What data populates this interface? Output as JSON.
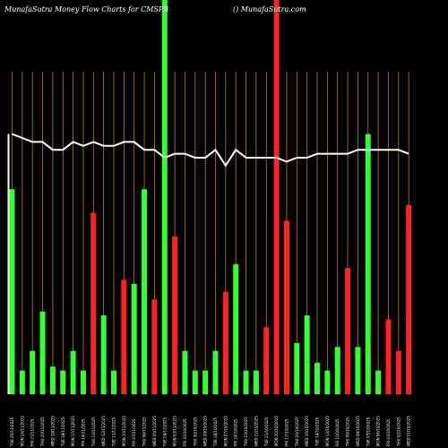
{
  "header": {
    "left": "MunafaSutra  Money Flow  Charts for CMSPB",
    "right": "() MunafaSutra.com"
  },
  "colors": {
    "background": "#000000",
    "up": "#33ff33",
    "down": "#ff2222",
    "grid": "#c87818",
    "line": "#ffffff"
  },
  "chart_data": {
    "type": "bar",
    "title": "MunafaSutra  Money Flow  Charts for CMSPB",
    "ylim": [
      0,
      100
    ],
    "categories": [
      "TUE 25/11/2025",
      "MON 24/11/2025",
      "FRI 21/11/2025",
      "THU 20/11/2025",
      "WED 19/11/2025",
      "TUE 18/11/2025",
      "MON 17/11/2025",
      "FRI 14/11/2025",
      "THU 13/11/2025",
      "WED 12/11/2025",
      "TUE 11/11/2025",
      "MON 10/11/2025",
      "FRI 07/11/2025",
      "THU 06/11/2025",
      "WED 05/11/2025",
      "TUE 04/11/2025",
      "MON 03/11/2025",
      "FRI 31/10/2025",
      "THU 30/10/2025",
      "WED 29/10/2025",
      "TUE 28/10/2025",
      "MON 27/10/2025",
      "FRI 24/10/2025",
      "THU 23/10/2025",
      "WED 22/10/2025",
      "TUE 21/10/2025",
      "MON 20/10/2025",
      "FRI 17/10/2025",
      "THU 16/10/2025",
      "WED 15/10/2025",
      "TUE 14/10/2025",
      "MON 13/10/2025",
      "FRI 10/10/2025",
      "THU 09/10/2025",
      "WED 08/10/2025",
      "TUE 07/10/2025",
      "MON 06/10/2025",
      "FRI 03/10/2025",
      "THU 02/10/2025",
      "WED 01/10/2025"
    ],
    "series": [
      {
        "values": [
          52,
          6,
          11,
          21,
          7,
          6,
          11,
          6,
          46,
          20,
          6,
          29,
          28,
          52,
          24,
          102,
          40,
          11,
          6,
          6,
          11,
          26,
          33,
          6,
          6,
          17,
          102,
          44,
          13,
          20,
          8,
          6,
          12,
          32,
          12,
          66,
          6,
          19,
          11,
          48
        ],
        "directions": [
          "up",
          "up",
          "up",
          "up",
          "up",
          "up",
          "up",
          "up",
          "down",
          "up",
          "up",
          "down",
          "up",
          "up",
          "down",
          "up",
          "down",
          "up",
          "up",
          "up",
          "up",
          "down",
          "up",
          "up",
          "up",
          "down",
          "down",
          "down",
          "up",
          "up",
          "up",
          "up",
          "up",
          "down",
          "up",
          "up",
          "up",
          "down",
          "down",
          "down"
        ]
      },
      {
        "type": "line",
        "values": [
          66,
          65,
          64,
          64,
          62,
          62,
          64,
          63,
          64,
          63,
          63,
          64,
          64,
          62,
          62,
          60,
          61,
          61,
          60,
          60,
          62,
          58,
          62,
          60,
          60,
          60,
          60,
          59,
          60,
          60,
          61,
          61,
          61,
          61,
          62,
          62,
          62,
          62,
          62,
          61
        ]
      }
    ],
    "grid": true
  }
}
